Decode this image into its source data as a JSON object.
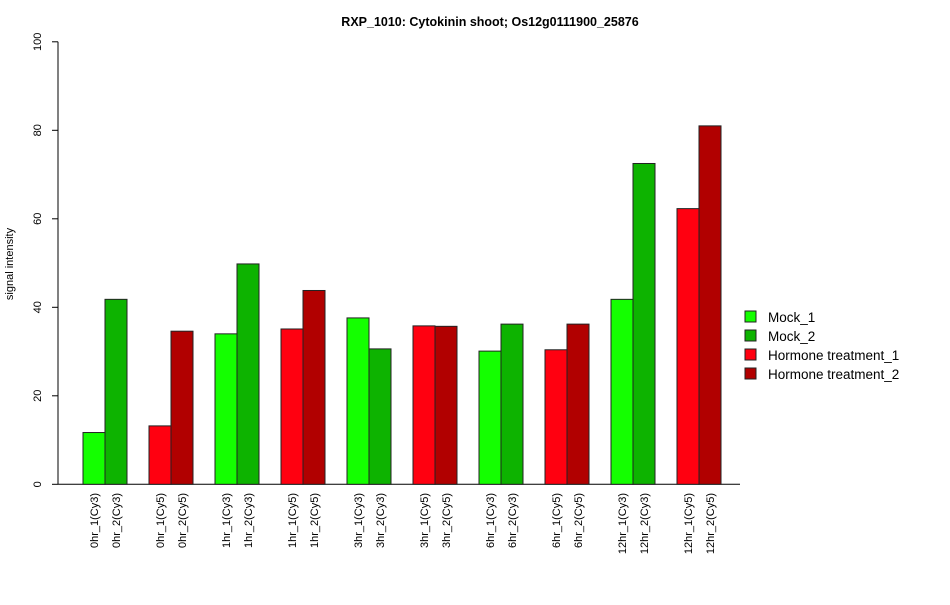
{
  "chart_data": {
    "type": "bar",
    "title": "RXP_1010: Cytokinin shoot; Os12g0111900_25876",
    "xlabel": "",
    "ylabel": "signal intensity",
    "ylim": [
      0,
      100
    ],
    "yticks": [
      0,
      20,
      40,
      60,
      80,
      100
    ],
    "grid": false,
    "legend_position": "right",
    "legend": [
      {
        "name": "Mock_1",
        "color": "#14FF00"
      },
      {
        "name": "Mock_2",
        "color": "#0DB300"
      },
      {
        "name": "Hormone treatment_1",
        "color": "#FF0010"
      },
      {
        "name": "Hormone treatment_2",
        "color": "#B10000"
      }
    ],
    "bars": [
      {
        "label": "0hr_1(Cy3)",
        "value": 11.7,
        "series": 0
      },
      {
        "label": "0hr_2(Cy3)",
        "value": 41.8,
        "series": 1
      },
      {
        "label": "0hr_1(Cy5)",
        "value": 13.2,
        "series": 2
      },
      {
        "label": "0hr_2(Cy5)",
        "value": 34.6,
        "series": 3
      },
      {
        "label": "1hr_1(Cy3)",
        "value": 34.0,
        "series": 0
      },
      {
        "label": "1hr_2(Cy3)",
        "value": 49.8,
        "series": 1
      },
      {
        "label": "1hr_1(Cy5)",
        "value": 35.1,
        "series": 2
      },
      {
        "label": "1hr_2(Cy5)",
        "value": 43.8,
        "series": 3
      },
      {
        "label": "3hr_1(Cy3)",
        "value": 37.6,
        "series": 0
      },
      {
        "label": "3hr_2(Cy3)",
        "value": 30.6,
        "series": 1
      },
      {
        "label": "3hr_1(Cy5)",
        "value": 35.8,
        "series": 2
      },
      {
        "label": "3hr_2(Cy5)",
        "value": 35.7,
        "series": 3
      },
      {
        "label": "6hr_1(Cy3)",
        "value": 30.1,
        "series": 0
      },
      {
        "label": "6hr_2(Cy3)",
        "value": 36.2,
        "series": 1
      },
      {
        "label": "6hr_1(Cy5)",
        "value": 30.4,
        "series": 2
      },
      {
        "label": "6hr_2(Cy5)",
        "value": 36.2,
        "series": 3
      },
      {
        "label": "12hr_1(Cy3)",
        "value": 41.8,
        "series": 0
      },
      {
        "label": "12hr_2(Cy3)",
        "value": 72.5,
        "series": 1
      },
      {
        "label": "12hr_1(Cy5)",
        "value": 62.3,
        "series": 2
      },
      {
        "label": "12hr_2(Cy5)",
        "value": 81.0,
        "series": 3
      }
    ]
  }
}
